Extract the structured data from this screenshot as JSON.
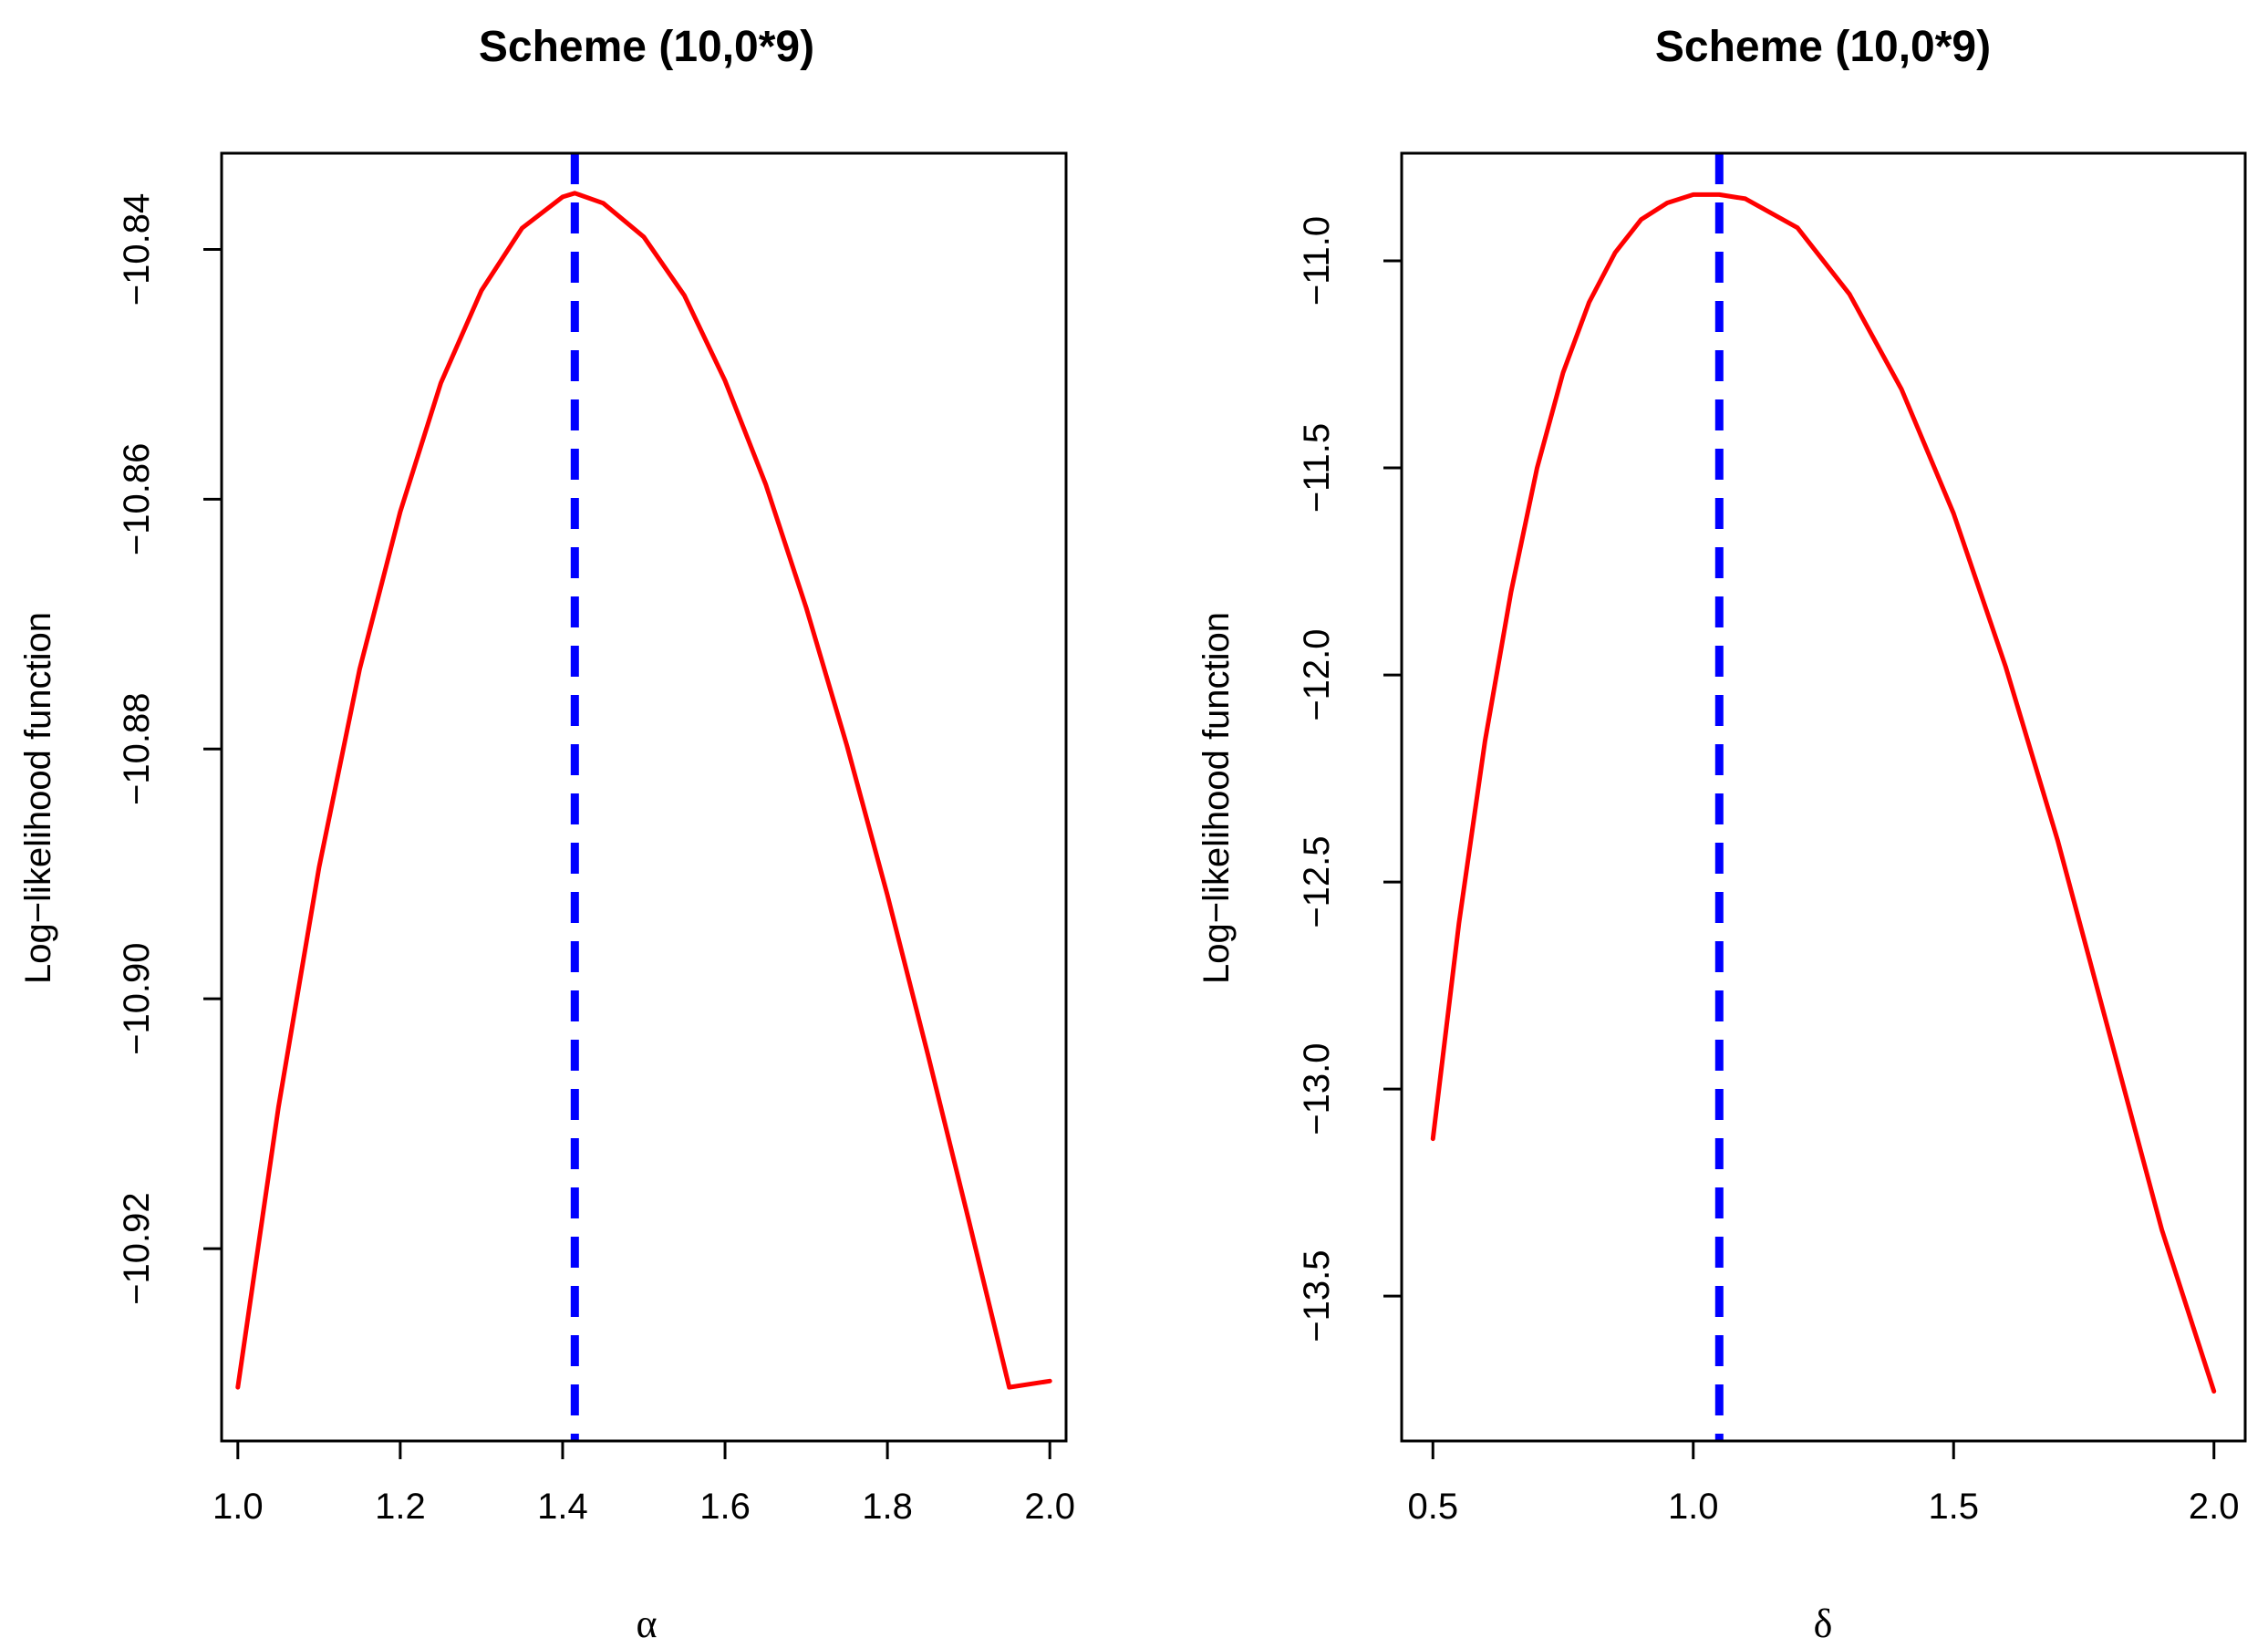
{
  "colors": {
    "curve": "#ff0000",
    "mle_line": "#0000ff",
    "axes": "#000000",
    "background": "#ffffff"
  },
  "chart_data": [
    {
      "type": "line",
      "title": "Scheme (10,0*9)",
      "xlabel": "α",
      "ylabel": "Log−likelihood function",
      "xlim": [
        0.98,
        2.02
      ],
      "ylim": [
        -10.9354,
        -10.8323
      ],
      "xticks": [
        1.0,
        1.2,
        1.4,
        1.6,
        1.8,
        2.0
      ],
      "xtick_labels": [
        "1.0",
        "1.2",
        "1.4",
        "1.6",
        "1.8",
        "2.0"
      ],
      "yticks": [
        -10.84,
        -10.86,
        -10.88,
        -10.9,
        -10.92
      ],
      "ytick_labels": [
        "−10.84",
        "−10.86",
        "−10.88",
        "−10.90",
        "−10.92"
      ],
      "curve": {
        "x": [
          1.0,
          1.05,
          1.1,
          1.15,
          1.2,
          1.25,
          1.3,
          1.35,
          1.4,
          1.415,
          1.45,
          1.5,
          1.55,
          1.6,
          1.65,
          1.7,
          1.75,
          1.8,
          1.85,
          1.9,
          1.95,
          2.0
        ],
        "y": [
          -10.9311,
          -10.9087,
          -10.8895,
          -10.8736,
          -10.861,
          -10.8507,
          -10.8433,
          -10.8383,
          -10.8358,
          -10.8355,
          -10.8363,
          -10.839,
          -10.8437,
          -10.8505,
          -10.8588,
          -10.8687,
          -10.8797,
          -10.8917,
          -10.9045,
          -10.9177,
          -10.9311,
          -10.9306
        ]
      },
      "mle_vline": 1.415,
      "grid": false,
      "legend": "none"
    },
    {
      "type": "line",
      "title": "Scheme (10,0*9)",
      "xlabel": "δ",
      "ylabel": "Log−likelihood function",
      "xlim": [
        0.44,
        2.06
      ],
      "ylim": [
        -13.85,
        -10.74
      ],
      "xticks": [
        0.5,
        1.0,
        1.5,
        2.0
      ],
      "xtick_labels": [
        "0.5",
        "1.0",
        "1.5",
        "2.0"
      ],
      "yticks": [
        -11.0,
        -11.5,
        -12.0,
        -12.5,
        -13.0,
        -13.5
      ],
      "ytick_labels": [
        "−11.0",
        "−11.5",
        "−12.0",
        "−12.5",
        "−13.0",
        "−13.5"
      ],
      "curve": {
        "x": [
          0.5,
          0.55,
          0.6,
          0.65,
          0.7,
          0.75,
          0.8,
          0.85,
          0.9,
          0.95,
          1.0,
          1.05,
          1.1,
          1.2,
          1.3,
          1.4,
          1.5,
          1.6,
          1.7,
          1.8,
          1.9,
          2.0
        ],
        "y": [
          -13.12,
          -12.6,
          -12.16,
          -11.8,
          -11.5,
          -11.27,
          -11.1,
          -10.98,
          -10.9,
          -10.86,
          -10.84,
          -10.84,
          -10.85,
          -10.92,
          -11.08,
          -11.31,
          -11.61,
          -11.98,
          -12.4,
          -12.87,
          -13.34,
          -13.73
        ]
      },
      "mle_vline": 1.05,
      "grid": false,
      "legend": "none"
    }
  ]
}
